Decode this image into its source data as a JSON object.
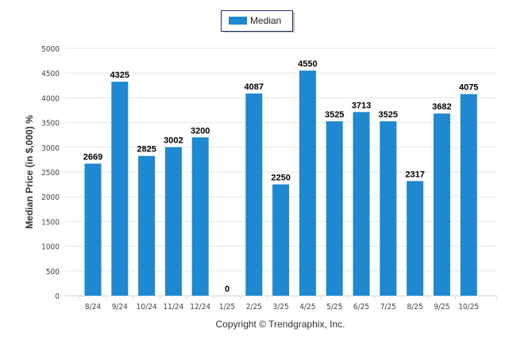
{
  "chart_data": {
    "type": "bar",
    "categories": [
      "8/24",
      "9/24",
      "10/24",
      "11/24",
      "12/24",
      "1/25",
      "2/25",
      "3/25",
      "4/25",
      "5/25",
      "6/25",
      "7/25",
      "8/25",
      "9/25",
      "10/25"
    ],
    "series": [
      {
        "name": "Median",
        "values": [
          2669,
          4325,
          2825,
          3002,
          3200,
          0,
          4087,
          2250,
          4550,
          3525,
          3713,
          3525,
          2317,
          3682,
          4075
        ],
        "color": "#1e88d0"
      }
    ],
    "ylabel": "Median Price (in $,000) %",
    "xlabel": "",
    "ylim": [
      0,
      5000
    ],
    "yticks": [
      0,
      500,
      1000,
      1500,
      2000,
      2500,
      3000,
      3500,
      4000,
      4500,
      5000
    ],
    "grid": true,
    "legend": "top-center"
  },
  "footer": {
    "copyright": "Copyright © Trendgraphix, Inc."
  }
}
